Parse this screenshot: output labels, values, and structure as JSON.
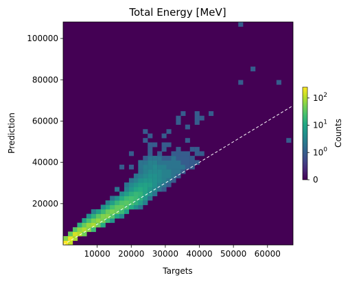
{
  "chart_data": {
    "type": "heatmap",
    "title": "Total Energy [MeV]",
    "xlabel": "Targets",
    "ylabel": "Prediction",
    "xlim": [
      0,
      67500
    ],
    "ylim": [
      0,
      108000
    ],
    "x_ticks": [
      10000,
      20000,
      30000,
      40000,
      50000,
      60000
    ],
    "x_tick_labels": [
      "10000",
      "20000",
      "30000",
      "40000",
      "50000",
      "60000"
    ],
    "y_ticks": [
      20000,
      40000,
      60000,
      80000,
      100000
    ],
    "y_tick_labels": [
      "20000",
      "40000",
      "60000",
      "80000",
      "100000"
    ],
    "bin_count_x": 50,
    "bin_count_y": 50,
    "scale": "symlog",
    "colormap": "viridis",
    "colorbar": {
      "label": "Counts",
      "ticks": [
        {
          "value": 0,
          "base": "0",
          "exp": ""
        },
        {
          "value": 1,
          "base": "10",
          "exp": "0"
        },
        {
          "value": 10,
          "base": "10",
          "exp": "1"
        },
        {
          "value": 100,
          "base": "10",
          "exp": "2"
        }
      ],
      "max": 250
    },
    "reference_line": {
      "style": "dashed",
      "color": "#ffffff",
      "slope": 1.0,
      "from": [
        0,
        0
      ],
      "to": [
        67500,
        67500
      ]
    },
    "background_color": "#440154",
    "cells": [
      [
        700,
        1000,
        250
      ],
      [
        2100,
        1000,
        120
      ],
      [
        700,
        3200,
        60
      ],
      [
        2100,
        3200,
        200
      ],
      [
        3500,
        3200,
        90
      ],
      [
        2100,
        5400,
        40
      ],
      [
        3500,
        5400,
        150
      ],
      [
        4800,
        5400,
        110
      ],
      [
        6200,
        5400,
        45
      ],
      [
        3500,
        7500,
        30
      ],
      [
        4800,
        7500,
        70
      ],
      [
        6200,
        7500,
        100
      ],
      [
        7500,
        7500,
        60
      ],
      [
        8900,
        7500,
        20
      ],
      [
        4800,
        9700,
        15
      ],
      [
        6200,
        9700,
        40
      ],
      [
        7500,
        9700,
        75
      ],
      [
        8900,
        9700,
        90
      ],
      [
        10300,
        9700,
        40
      ],
      [
        11700,
        9700,
        12
      ],
      [
        6200,
        11900,
        8
      ],
      [
        7500,
        11900,
        25
      ],
      [
        8900,
        11900,
        50
      ],
      [
        10300,
        11900,
        70
      ],
      [
        11700,
        11900,
        50
      ],
      [
        13100,
        11900,
        20
      ],
      [
        14400,
        11900,
        6
      ],
      [
        7500,
        14000,
        5
      ],
      [
        8900,
        14000,
        15
      ],
      [
        10300,
        14000,
        35
      ],
      [
        11700,
        14000,
        55
      ],
      [
        13100,
        14000,
        60
      ],
      [
        14400,
        14000,
        30
      ],
      [
        15800,
        14000,
        10
      ],
      [
        17200,
        14000,
        4
      ],
      [
        8900,
        16200,
        3
      ],
      [
        10300,
        16200,
        8
      ],
      [
        11700,
        16200,
        20
      ],
      [
        13100,
        16200,
        40
      ],
      [
        14400,
        16200,
        50
      ],
      [
        15800,
        16200,
        40
      ],
      [
        17200,
        16200,
        20
      ],
      [
        18600,
        16200,
        8
      ],
      [
        11700,
        18400,
        5
      ],
      [
        13100,
        18400,
        12
      ],
      [
        14400,
        18400,
        25
      ],
      [
        15800,
        18400,
        38
      ],
      [
        17200,
        18400,
        40
      ],
      [
        18600,
        18400,
        25
      ],
      [
        20000,
        18400,
        12
      ],
      [
        21400,
        18400,
        5
      ],
      [
        22700,
        18400,
        2
      ],
      [
        13100,
        20500,
        3
      ],
      [
        14400,
        20500,
        8
      ],
      [
        15800,
        20500,
        18
      ],
      [
        17200,
        20500,
        28
      ],
      [
        18600,
        20500,
        32
      ],
      [
        20000,
        20500,
        26
      ],
      [
        21400,
        20500,
        15
      ],
      [
        22700,
        20500,
        8
      ],
      [
        24100,
        20500,
        3
      ],
      [
        14400,
        22700,
        2
      ],
      [
        15800,
        22700,
        5
      ],
      [
        17200,
        22700,
        12
      ],
      [
        18600,
        22700,
        20
      ],
      [
        20000,
        22700,
        24
      ],
      [
        21400,
        22700,
        20
      ],
      [
        22700,
        22700,
        14
      ],
      [
        24100,
        22700,
        6
      ],
      [
        25500,
        22700,
        2
      ],
      [
        17200,
        24800,
        4
      ],
      [
        18600,
        24800,
        8
      ],
      [
        20000,
        24800,
        14
      ],
      [
        21400,
        24800,
        18
      ],
      [
        22700,
        24800,
        16
      ],
      [
        24100,
        24800,
        10
      ],
      [
        25500,
        24800,
        5
      ],
      [
        26900,
        24800,
        2
      ],
      [
        15800,
        27000,
        2
      ],
      [
        18600,
        27000,
        3
      ],
      [
        20000,
        27000,
        6
      ],
      [
        21400,
        27000,
        10
      ],
      [
        22700,
        27000,
        12
      ],
      [
        24100,
        27000,
        10
      ],
      [
        25500,
        27000,
        6
      ],
      [
        26900,
        27000,
        4
      ],
      [
        28300,
        27000,
        2
      ],
      [
        29600,
        27000,
        1
      ],
      [
        18600,
        29200,
        2
      ],
      [
        20000,
        29200,
        4
      ],
      [
        21400,
        29200,
        6
      ],
      [
        22700,
        29200,
        8
      ],
      [
        24100,
        29200,
        9
      ],
      [
        25500,
        29200,
        8
      ],
      [
        26900,
        29200,
        5
      ],
      [
        28300,
        29200,
        3
      ],
      [
        29600,
        29200,
        2
      ],
      [
        31000,
        29200,
        1
      ],
      [
        20000,
        31300,
        2
      ],
      [
        21400,
        31300,
        3
      ],
      [
        22700,
        31300,
        5
      ],
      [
        24100,
        31300,
        6
      ],
      [
        25500,
        31300,
        6
      ],
      [
        26900,
        31300,
        5
      ],
      [
        28300,
        31300,
        4
      ],
      [
        29600,
        31300,
        3
      ],
      [
        31000,
        31300,
        2
      ],
      [
        32400,
        31300,
        1
      ],
      [
        21400,
        33500,
        2
      ],
      [
        22700,
        33500,
        3
      ],
      [
        24100,
        33500,
        4
      ],
      [
        25500,
        33500,
        5
      ],
      [
        26900,
        33500,
        5
      ],
      [
        28300,
        33500,
        4
      ],
      [
        29600,
        33500,
        3
      ],
      [
        31000,
        33500,
        3
      ],
      [
        32400,
        33500,
        2
      ],
      [
        33800,
        33500,
        1
      ],
      [
        22700,
        35600,
        2
      ],
      [
        24100,
        35600,
        3
      ],
      [
        25500,
        35600,
        4
      ],
      [
        26900,
        35600,
        4
      ],
      [
        28300,
        35600,
        4
      ],
      [
        29600,
        35600,
        3
      ],
      [
        31000,
        35600,
        3
      ],
      [
        32400,
        35600,
        2
      ],
      [
        33800,
        35600,
        2
      ],
      [
        35200,
        35600,
        1
      ],
      [
        17200,
        37800,
        1
      ],
      [
        20000,
        37800,
        1
      ],
      [
        22700,
        37800,
        2
      ],
      [
        24100,
        37800,
        3
      ],
      [
        25500,
        37800,
        3
      ],
      [
        26900,
        37800,
        4
      ],
      [
        28300,
        37800,
        3
      ],
      [
        29600,
        37800,
        3
      ],
      [
        31000,
        37800,
        2
      ],
      [
        32400,
        37800,
        2
      ],
      [
        33800,
        37800,
        2
      ],
      [
        35200,
        37800,
        2
      ],
      [
        36500,
        37800,
        1
      ],
      [
        37900,
        37800,
        1
      ],
      [
        22700,
        40000,
        2
      ],
      [
        24100,
        40000,
        2
      ],
      [
        25500,
        40000,
        3
      ],
      [
        26900,
        40000,
        3
      ],
      [
        28300,
        40000,
        2
      ],
      [
        29600,
        40000,
        2
      ],
      [
        31000,
        40000,
        2
      ],
      [
        32400,
        40000,
        2
      ],
      [
        33800,
        40000,
        2
      ],
      [
        35200,
        40000,
        1
      ],
      [
        36500,
        40000,
        1
      ],
      [
        37900,
        40000,
        1
      ],
      [
        39300,
        40000,
        1
      ],
      [
        24100,
        42100,
        1
      ],
      [
        25500,
        42100,
        2
      ],
      [
        26900,
        42100,
        2
      ],
      [
        28300,
        42100,
        2
      ],
      [
        29600,
        42100,
        1
      ],
      [
        31000,
        42100,
        1
      ],
      [
        32400,
        42100,
        2
      ],
      [
        33800,
        42100,
        1
      ],
      [
        35200,
        42100,
        1
      ],
      [
        36500,
        42100,
        1
      ],
      [
        37900,
        42100,
        1
      ],
      [
        20000,
        44300,
        1
      ],
      [
        25500,
        44300,
        1
      ],
      [
        28300,
        44300,
        1
      ],
      [
        32400,
        44300,
        1
      ],
      [
        33800,
        44300,
        1
      ],
      [
        35200,
        44300,
        1
      ],
      [
        36500,
        44300,
        1
      ],
      [
        39300,
        44300,
        1
      ],
      [
        40700,
        44300,
        1
      ],
      [
        25500,
        46400,
        1
      ],
      [
        29600,
        46400,
        1
      ],
      [
        33800,
        46400,
        1
      ],
      [
        37900,
        46400,
        1
      ],
      [
        39300,
        46400,
        1
      ],
      [
        25500,
        48600,
        1
      ],
      [
        26900,
        48600,
        1
      ],
      [
        29600,
        48600,
        1
      ],
      [
        31000,
        48600,
        1
      ],
      [
        24100,
        50700,
        1
      ],
      [
        36500,
        50700,
        1
      ],
      [
        25500,
        52900,
        1
      ],
      [
        29600,
        52900,
        1
      ],
      [
        24100,
        55000,
        1
      ],
      [
        31000,
        55000,
        1
      ],
      [
        36500,
        57200,
        1
      ],
      [
        33800,
        59400,
        1
      ],
      [
        39300,
        59400,
        1
      ],
      [
        33800,
        61500,
        1
      ],
      [
        39300,
        61500,
        1
      ],
      [
        40700,
        61500,
        1
      ],
      [
        35200,
        63700,
        1
      ],
      [
        39300,
        63700,
        1
      ],
      [
        43400,
        63700,
        1
      ],
      [
        66200,
        50700,
        1
      ],
      [
        52100,
        78800,
        1
      ],
      [
        63300,
        78800,
        1
      ],
      [
        55700,
        85300,
        1
      ],
      [
        52100,
        106900,
        1
      ]
    ]
  }
}
